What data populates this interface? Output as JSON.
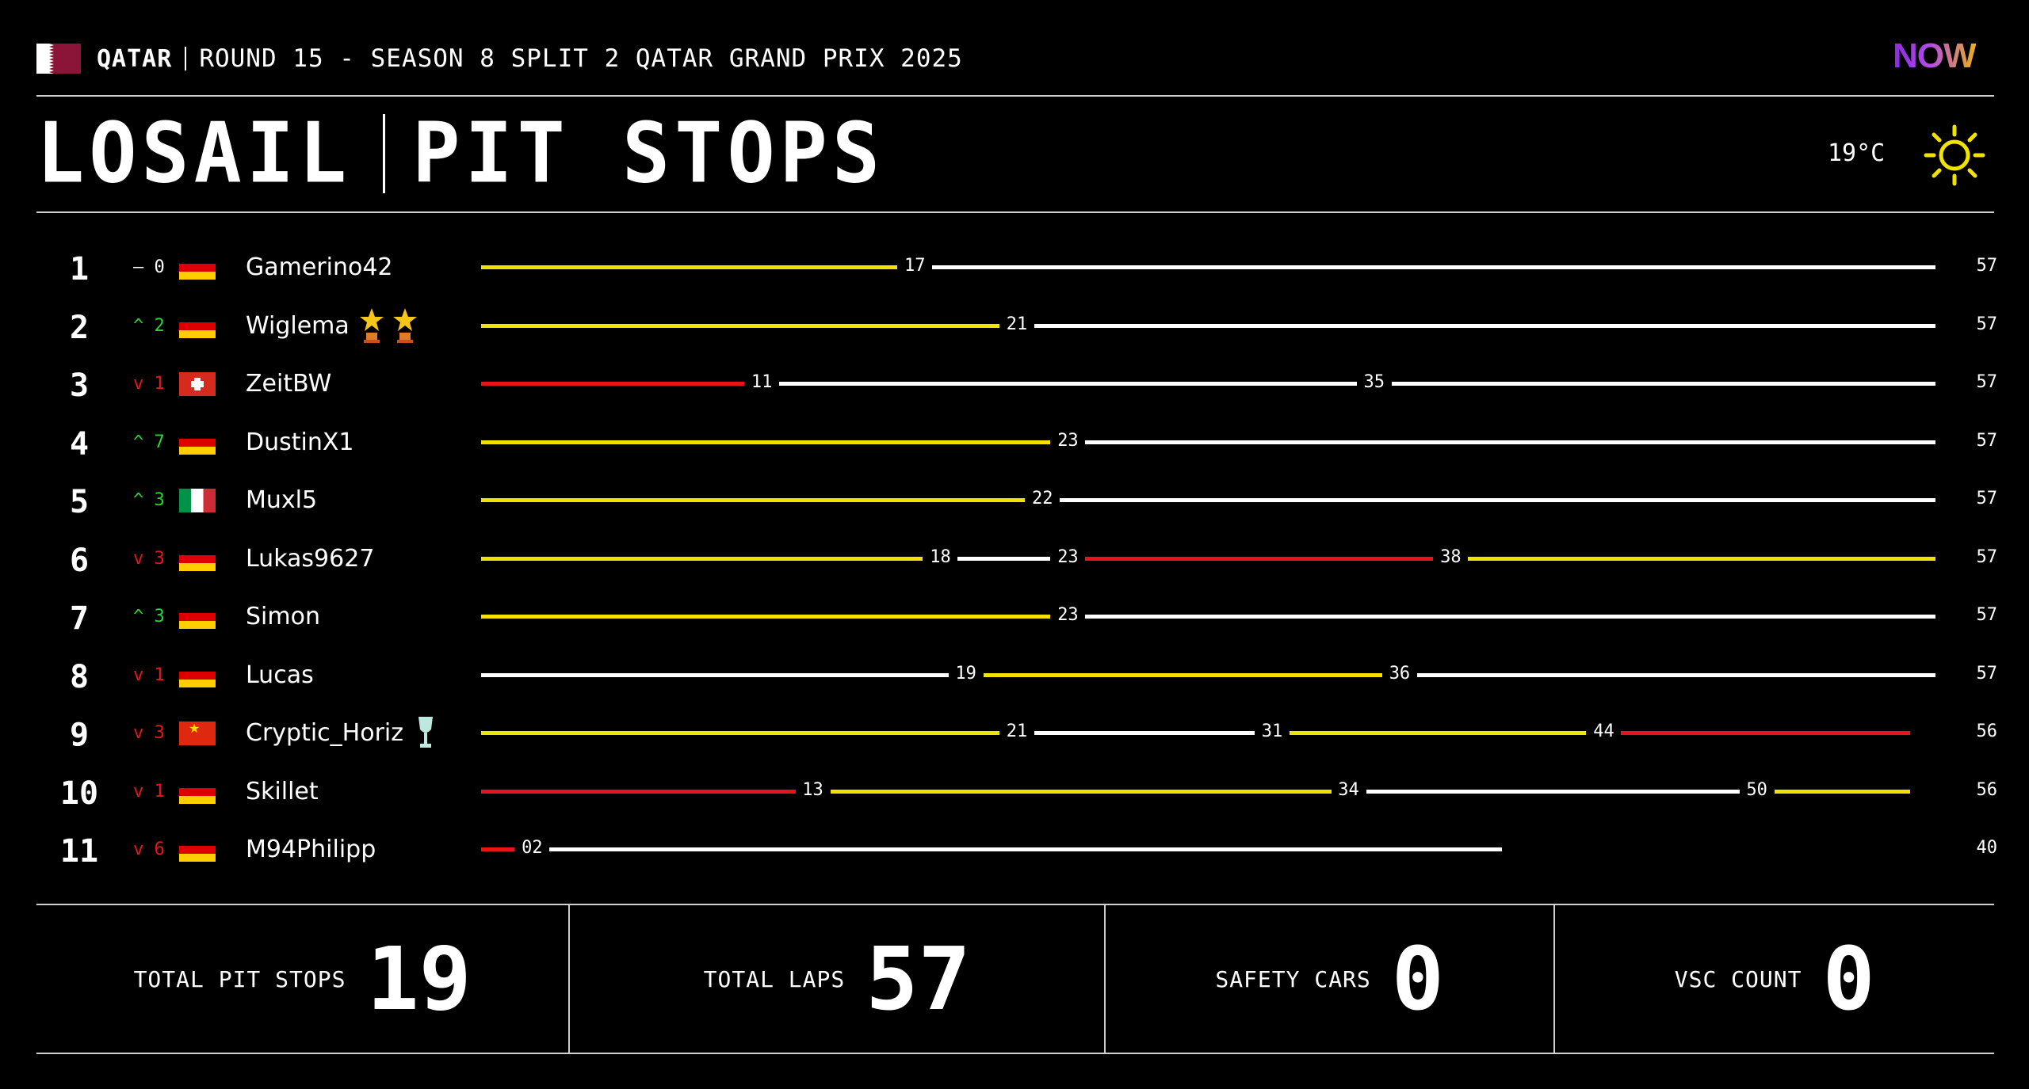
{
  "header": {
    "country": "QATAR",
    "round": "ROUND 15 - SEASON 8 SPLIT 2 QATAR GRAND PRIX 2025",
    "logo_text": "NOW",
    "flag_colors": {
      "white": "#ffffff",
      "maroon": "#8a1538"
    }
  },
  "title": {
    "track": "LOSAIL",
    "section": "PIT STOPS",
    "temperature": "19°C",
    "weather_icon": "sun-icon"
  },
  "tyre_colors": {
    "yellow": "#f2e200",
    "white": "#ffffff",
    "red": "#e8141b"
  },
  "race": {
    "total_laps": 57
  },
  "results": [
    {
      "pos": "1",
      "change": "– 0",
      "trend": "same",
      "flag": "de",
      "driver": "Gamerino42",
      "stints": [
        {
          "c": "y",
          "end": 17
        },
        {
          "c": "w",
          "end": 57
        }
      ],
      "laps": 57
    },
    {
      "pos": "2",
      "change": "^ 2",
      "trend": "up",
      "flag": "de",
      "driver": "Wiglema",
      "badges": [
        "trophy-star-icon",
        "trophy-star-icon"
      ],
      "stints": [
        {
          "c": "y",
          "end": 21
        },
        {
          "c": "w",
          "end": 57
        }
      ],
      "laps": 57
    },
    {
      "pos": "3",
      "change": "v 1",
      "trend": "down",
      "flag": "ch",
      "driver": "ZeitBW",
      "stints": [
        {
          "c": "r",
          "end": 11
        },
        {
          "c": "w",
          "end": 35
        },
        {
          "c": "w",
          "end": 57
        }
      ],
      "laps": 57
    },
    {
      "pos": "4",
      "change": "^ 7",
      "trend": "up",
      "flag": "de",
      "driver": "DustinX1",
      "stints": [
        {
          "c": "y",
          "end": 23
        },
        {
          "c": "w",
          "end": 57
        }
      ],
      "laps": 57
    },
    {
      "pos": "5",
      "change": "^ 3",
      "trend": "up",
      "flag": "it",
      "driver": "Muxl5",
      "stints": [
        {
          "c": "y",
          "end": 22
        },
        {
          "c": "w",
          "end": 57
        }
      ],
      "laps": 57
    },
    {
      "pos": "6",
      "change": "v 3",
      "trend": "down",
      "flag": "de",
      "driver": "Lukas9627",
      "stints": [
        {
          "c": "y",
          "end": 18
        },
        {
          "c": "w",
          "end": 23
        },
        {
          "c": "r",
          "end": 38
        },
        {
          "c": "y",
          "end": 57
        }
      ],
      "laps": 57
    },
    {
      "pos": "7",
      "change": "^ 3",
      "trend": "up",
      "flag": "de",
      "driver": "Simon",
      "stints": [
        {
          "c": "y",
          "end": 23
        },
        {
          "c": "w",
          "end": 57
        }
      ],
      "laps": 57
    },
    {
      "pos": "8",
      "change": "v 1",
      "trend": "down",
      "flag": "de",
      "driver": "Lucas",
      "stints": [
        {
          "c": "w",
          "end": 19
        },
        {
          "c": "y",
          "end": 36
        },
        {
          "c": "w",
          "end": 57
        }
      ],
      "laps": 57
    },
    {
      "pos": "9",
      "change": "v 3",
      "trend": "down",
      "flag": "cn",
      "driver": "Cryptic_Horiz",
      "badges": [
        "cup-icon"
      ],
      "stints": [
        {
          "c": "y",
          "end": 21
        },
        {
          "c": "w",
          "end": 31
        },
        {
          "c": "y",
          "end": 44
        },
        {
          "c": "r",
          "end": 56
        }
      ],
      "laps": 56
    },
    {
      "pos": "10",
      "change": "v 1",
      "trend": "down",
      "flag": "de",
      "driver": "Skillet",
      "stints": [
        {
          "c": "r",
          "end": 13
        },
        {
          "c": "y",
          "end": 34
        },
        {
          "c": "w",
          "end": 50
        },
        {
          "c": "y",
          "end": 56
        }
      ],
      "laps": 56
    },
    {
      "pos": "11",
      "change": "v 6",
      "trend": "down",
      "flag": "de",
      "driver": "M94Philipp",
      "stints": [
        {
          "c": "r",
          "end": 2,
          "label": "02"
        },
        {
          "c": "w",
          "end": 40
        }
      ],
      "laps": 40
    }
  ],
  "stats": [
    {
      "label": "TOTAL PIT STOPS",
      "value": "19"
    },
    {
      "label": "TOTAL LAPS",
      "value": "57"
    },
    {
      "label": "SAFETY CARS",
      "value": "0"
    },
    {
      "label": "VSC COUNT",
      "value": "0"
    }
  ]
}
